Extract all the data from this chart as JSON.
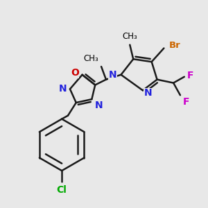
{
  "bg_color": "#e8e8e8",
  "bond_color": "#1a1a1a",
  "bond_width": 1.8,
  "figsize": [
    3.0,
    3.0
  ],
  "dpi": 100,
  "colors": {
    "N": "#2222dd",
    "O": "#cc0000",
    "Br": "#cc6600",
    "F": "#cc00cc",
    "Cl": "#00aa00",
    "C": "#000000"
  }
}
